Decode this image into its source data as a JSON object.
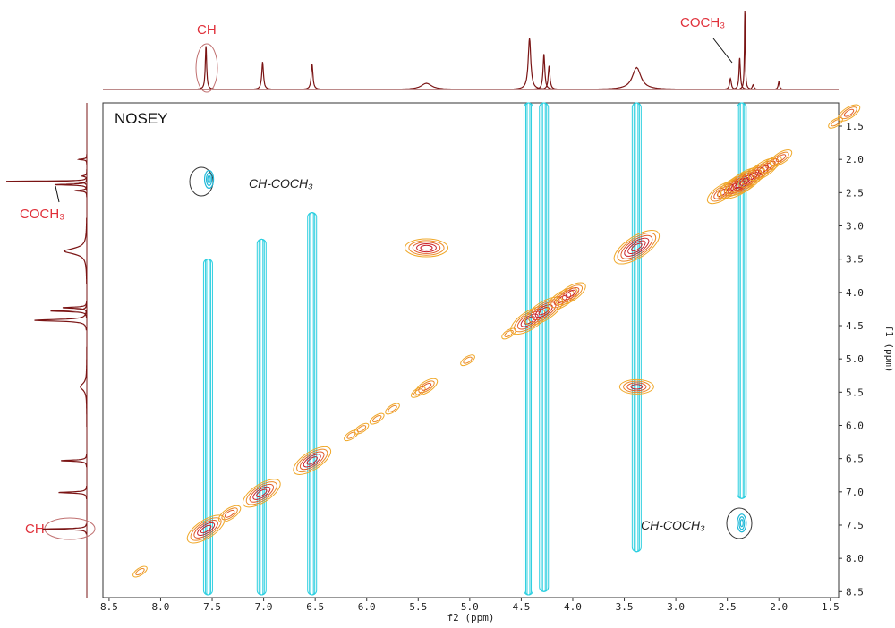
{
  "chart_data": {
    "type": "contour",
    "title": "NOSEY",
    "xlabel": "f2 (ppm)",
    "ylabel": "f1 (ppm)",
    "xlim": [
      8.56,
      1.42
    ],
    "ylim": [
      1.15,
      8.59
    ],
    "xticks": [
      8.5,
      {
        "value": 8,
        "label": "8.0"
      },
      7.5,
      {
        "value": 7,
        "label": "7.0"
      },
      6.5,
      {
        "value": 6,
        "label": "6.0"
      },
      5.5,
      {
        "value": 5,
        "label": "5.0"
      },
      4.5,
      {
        "value": 4,
        "label": "4.0"
      },
      3.5,
      {
        "value": 3,
        "label": "3.0"
      },
      2.5,
      {
        "value": 2,
        "label": "2.0"
      },
      1.5
    ],
    "yticks": [
      1.5,
      {
        "value": 2,
        "label": "2.0"
      },
      2.5,
      {
        "value": 3,
        "label": "3.0"
      },
      3.5,
      {
        "value": 4,
        "label": "4.0"
      },
      4.5,
      {
        "value": 5,
        "label": "5.0"
      },
      5.5,
      {
        "value": 6,
        "label": "6.0"
      },
      6.5,
      {
        "value": 7,
        "label": "7.0"
      },
      7.5,
      {
        "value": 8,
        "label": "8.0"
      },
      8.5
    ],
    "annotations": [
      "CH",
      "COCH₃",
      "CH-COCH₃",
      "COCH₃",
      "CH",
      "CH-COCH₃"
    ],
    "projection": {
      "color": "#7a1414",
      "x": [
        7.56,
        7.01,
        6.53,
        5.42,
        4.42,
        4.28,
        4.23,
        3.38,
        2.47,
        2.38,
        2.33,
        2.25,
        2.0
      ],
      "values": [
        55,
        35,
        32,
        8,
        65,
        45,
        30,
        28,
        14,
        40,
        100,
        6,
        10
      ],
      "widths": [
        0.008,
        0.01,
        0.01,
        0.06,
        0.015,
        0.01,
        0.01,
        0.05,
        0.01,
        0.008,
        0.005,
        0.01,
        0.008
      ]
    },
    "streaks": {
      "color": "#2ccfe0",
      "x": [
        7.54,
        7.02,
        6.53,
        4.43,
        4.28,
        3.38,
        2.36
      ],
      "from": [
        3.5,
        3.2,
        2.8,
        1.15,
        1.15,
        1.15,
        1.15
      ],
      "to": [
        8.55,
        8.55,
        8.55,
        8.55,
        8.5,
        7.9,
        7.1
      ]
    },
    "diagonal_peaks": {
      "color": "#f0a828",
      "x": [
        8.2,
        7.56,
        7.33,
        7.02,
        6.53,
        6.15,
        6.05,
        5.9,
        5.75,
        5.5,
        5.42,
        5.02,
        4.62,
        4.42,
        4.28,
        4.1,
        4.02,
        3.38,
        2.55,
        2.45,
        2.38,
        2.33,
        2.25,
        2.15,
        2.08,
        1.98,
        1.45,
        1.32
      ],
      "y": [
        8.2,
        7.56,
        7.33,
        7.02,
        6.53,
        6.15,
        6.05,
        5.9,
        5.75,
        5.5,
        5.42,
        5.02,
        4.62,
        4.42,
        4.28,
        4.1,
        4.02,
        3.32,
        2.5,
        2.42,
        2.38,
        2.33,
        2.25,
        2.15,
        2.08,
        1.98,
        1.45,
        1.3
      ],
      "sizes": [
        1,
        4,
        2,
        4,
        4,
        1,
        1,
        1,
        1,
        1,
        2,
        1,
        1,
        4,
        4,
        3,
        3,
        5,
        3,
        3,
        4,
        4,
        3,
        3,
        2,
        2,
        1,
        2
      ]
    },
    "cross_peaks": {
      "color": "#f0a828",
      "x": [
        5.42,
        3.38
      ],
      "y": [
        3.33,
        5.42
      ],
      "sizes": [
        4,
        3
      ]
    },
    "cyan_cross_peaks": {
      "color": "#1fb8d8",
      "x": [
        7.53,
        2.36
      ],
      "y": [
        2.3,
        7.47
      ]
    }
  }
}
